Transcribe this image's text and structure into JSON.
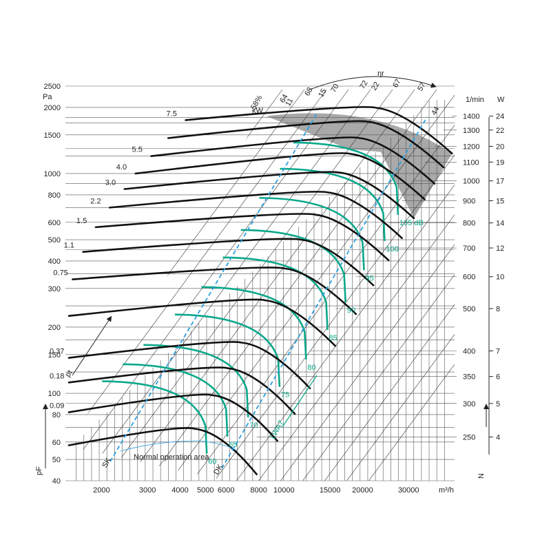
{
  "chart_data": {
    "type": "line",
    "title": "",
    "x_axis": {
      "scale": "log",
      "unit_label": "m³/h",
      "range": [
        1500,
        45000
      ],
      "ticks": [
        2000,
        3000,
        4000,
        5000,
        6000,
        8000,
        10000,
        15000,
        20000,
        30000
      ]
    },
    "y_axis": {
      "scale": "log",
      "symbol": "pF",
      "unit_label": "Pa",
      "range": [
        40,
        2500
      ],
      "ticks": [
        40,
        50,
        60,
        80,
        100,
        150,
        200,
        300,
        400,
        500,
        600,
        800,
        1000,
        1500,
        2000,
        2500
      ]
    },
    "speed_axis": {
      "unit_label": "1/min",
      "values": [
        1400,
        1300,
        1200,
        1100,
        1000,
        900,
        800,
        700,
        600,
        500,
        400,
        350,
        300,
        250
      ]
    },
    "noise_axis": {
      "unit_label": "W",
      "values": [
        24,
        22,
        20,
        19,
        17,
        15,
        14,
        12,
        10,
        8,
        7,
        6,
        5,
        4
      ],
      "symbol": "N"
    },
    "power_curves": {
      "unit_label": "kW",
      "values": [
        "7.5",
        "5.5",
        "4.0",
        "3.0",
        "2.2",
        "1.5",
        "1.1",
        "0.75",
        "0.37",
        "0.18",
        "0.09"
      ]
    },
    "efficiency": {
      "symbol": "ηr",
      "values": [
        "58%",
        "64",
        "68",
        "70",
        "72",
        "67",
        "57",
        "44",
        "11",
        "15",
        "22"
      ]
    },
    "sound_levels": {
      "symbol": "LWA7",
      "values": [
        "60",
        "65",
        "70",
        "75",
        "80",
        "85",
        "90",
        "95",
        "100",
        "105 dB"
      ]
    },
    "dashed_labels": [
      "SK",
      "DK"
    ],
    "pt_label": "pt",
    "annotation": "Normal operation area",
    "series_speeds": [
      {
        "rpm": 1400,
        "peak_y": 1990,
        "start": [
          4200,
          1750
        ]
      },
      {
        "rpm": 1300,
        "peak_y": 1720,
        "start": [
          3600,
          1450
        ]
      },
      {
        "rpm": 1200,
        "peak_y": 1450,
        "start": [
          3100,
          1200
        ]
      },
      {
        "rpm": 1100,
        "peak_y": 1230,
        "start": [
          2700,
          1000
        ]
      },
      {
        "rpm": 1000,
        "peak_y": 1010,
        "start": [
          2450,
          850
        ]
      },
      {
        "rpm": 900,
        "peak_y": 820,
        "start": [
          2150,
          700
        ]
      },
      {
        "rpm": 800,
        "peak_y": 650,
        "start": [
          1900,
          570
        ]
      },
      {
        "rpm": 700,
        "peak_y": 500,
        "start": [
          1700,
          440
        ]
      },
      {
        "rpm": 600,
        "peak_y": 370,
        "start": [
          1550,
          330
        ]
      },
      {
        "rpm": 500,
        "peak_y": 265,
        "start": [
          1500,
          225
        ]
      },
      {
        "rpm": 400,
        "peak_y": 170,
        "start": [
          1500,
          145
        ]
      },
      {
        "rpm": 350,
        "peak_y": 130,
        "start": [
          1500,
          112
        ]
      },
      {
        "rpm": 300,
        "peak_y": 98,
        "start": [
          1500,
          82
        ]
      },
      {
        "rpm": 250,
        "peak_y": 69,
        "start": [
          1500,
          58
        ]
      }
    ],
    "colors": {
      "speed": "#111111",
      "performance": "#0aa88a",
      "dashed": "#2b9fe0",
      "grid": "#555555",
      "shade": "#9a9a9a"
    },
    "grid": true
  }
}
